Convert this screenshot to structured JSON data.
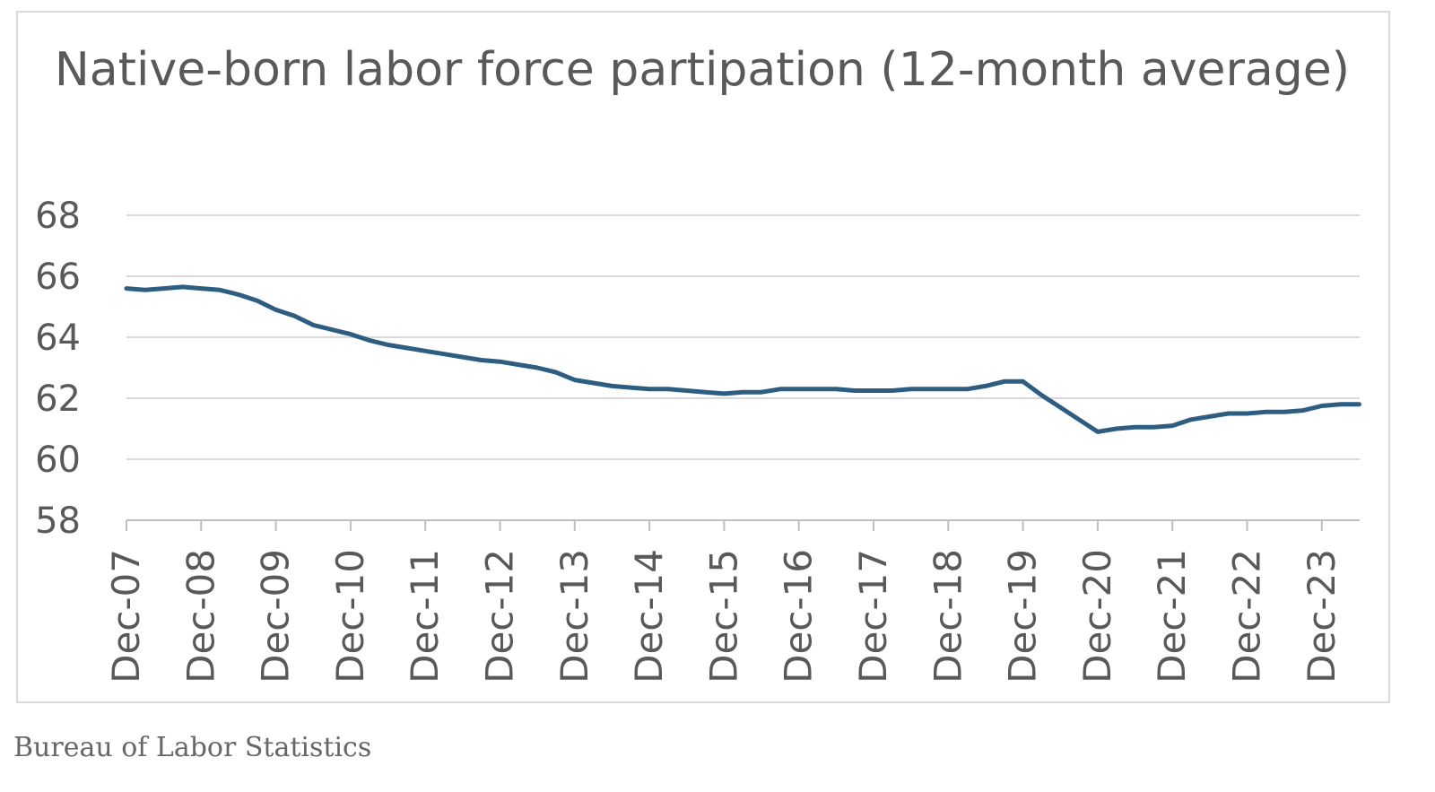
{
  "chart_data": {
    "type": "line",
    "title": "Native-born labor force partipation (12-month average)",
    "xlabel": "",
    "ylabel": "",
    "ylim": [
      58,
      68
    ],
    "yticks": [
      "58",
      "60",
      "62",
      "64",
      "66",
      "68"
    ],
    "xticks": [
      "Dec-07",
      "Dec-08",
      "Dec-09",
      "Dec-10",
      "Dec-11",
      "Dec-12",
      "Dec-13",
      "Dec-14",
      "Dec-15",
      "Dec-16",
      "Dec-17",
      "Dec-18",
      "Dec-19",
      "Dec-20",
      "Dec-21",
      "Dec-22",
      "Dec-23"
    ],
    "grid": true,
    "legend": "none",
    "series": [
      {
        "color": "#2e5d82",
        "x": [
          "2007-12",
          "2008-03",
          "2008-06",
          "2008-09",
          "2008-12",
          "2009-03",
          "2009-06",
          "2009-09",
          "2009-12",
          "2010-03",
          "2010-06",
          "2010-09",
          "2010-12",
          "2011-03",
          "2011-06",
          "2011-09",
          "2011-12",
          "2012-03",
          "2012-06",
          "2012-09",
          "2012-12",
          "2013-03",
          "2013-06",
          "2013-09",
          "2013-12",
          "2014-03",
          "2014-06",
          "2014-09",
          "2014-12",
          "2015-03",
          "2015-06",
          "2015-09",
          "2015-12",
          "2016-03",
          "2016-06",
          "2016-09",
          "2016-12",
          "2017-03",
          "2017-06",
          "2017-09",
          "2017-12",
          "2018-03",
          "2018-06",
          "2018-09",
          "2018-12",
          "2019-03",
          "2019-06",
          "2019-09",
          "2019-12",
          "2020-03",
          "2020-06",
          "2020-09",
          "2020-12",
          "2021-03",
          "2021-06",
          "2021-09",
          "2021-12",
          "2022-03",
          "2022-06",
          "2022-09",
          "2022-12",
          "2023-03",
          "2023-06",
          "2023-09",
          "2023-12",
          "2024-03",
          "2024-06"
        ],
        "y": [
          65.6,
          65.55,
          65.6,
          65.65,
          65.6,
          65.55,
          65.4,
          65.2,
          64.9,
          64.7,
          64.4,
          64.25,
          64.1,
          63.9,
          63.75,
          63.65,
          63.55,
          63.45,
          63.35,
          63.25,
          63.2,
          63.1,
          63.0,
          62.85,
          62.6,
          62.5,
          62.4,
          62.35,
          62.3,
          62.3,
          62.25,
          62.2,
          62.15,
          62.2,
          62.2,
          62.3,
          62.3,
          62.3,
          62.3,
          62.25,
          62.25,
          62.25,
          62.3,
          62.3,
          62.3,
          62.3,
          62.4,
          62.55,
          62.55,
          62.1,
          61.7,
          61.3,
          60.9,
          61.0,
          61.05,
          61.05,
          61.1,
          61.3,
          61.4,
          61.5,
          61.5,
          61.55,
          61.55,
          61.6,
          61.75,
          61.8,
          61.8
        ]
      }
    ]
  },
  "source": {
    "text": "Bureau of Labor Statistics"
  }
}
